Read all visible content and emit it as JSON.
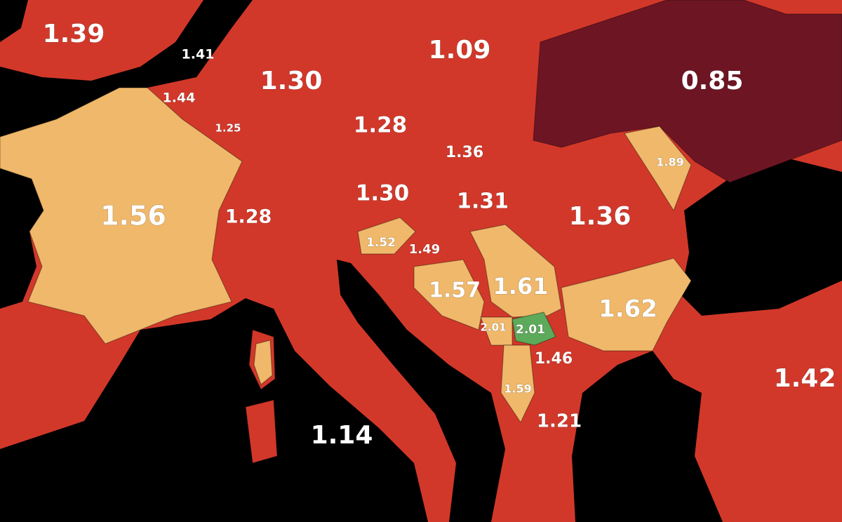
{
  "labels": [
    "1.39",
    "1.41",
    "1.30",
    "1.44",
    "1.25",
    "1.09",
    "0.85",
    "1.28",
    "1.36",
    "1.89",
    "1.56",
    "1.28",
    "1.30",
    "1.31",
    "1.36",
    "1.52",
    "1.49",
    "1.57",
    "1.61",
    "1.62",
    "2.01",
    "2.01",
    "1.46",
    "1.42",
    "1.59",
    "1.21",
    "1.14"
  ]
}
